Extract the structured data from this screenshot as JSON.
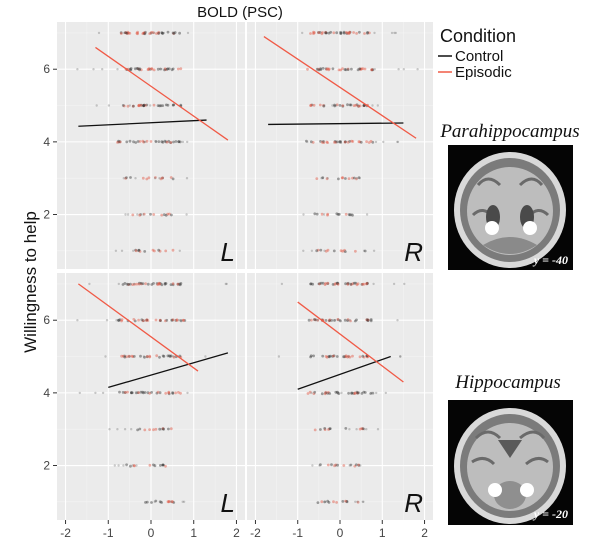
{
  "chart_data": {
    "type": "scatter",
    "top_label": "BOLD (PSC)",
    "ylabel": "Willingness to help",
    "xlim": [
      -2.2,
      2.2
    ],
    "ylim": [
      0.5,
      7.3
    ],
    "x_ticks": [
      -2,
      -1,
      0,
      1,
      2
    ],
    "y_ticks": [
      2,
      4,
      6
    ],
    "grid": true,
    "legend": {
      "title": "Condition",
      "position": "top-right",
      "entries": [
        {
          "name": "Control",
          "color": "#111111"
        },
        {
          "name": "Episodic",
          "color": "#f05a46"
        }
      ]
    },
    "panels": [
      {
        "region": "Parahippocampus",
        "hemisphere": "L",
        "show_x_ticks": false,
        "fits": {
          "Control": {
            "x": [
              -1.7,
              1.3
            ],
            "y": [
              4.43,
              4.6
            ]
          },
          "Episodic": {
            "x": [
              -1.3,
              1.8
            ],
            "y": [
              6.6,
              4.05
            ]
          }
        }
      },
      {
        "region": "Parahippocampus",
        "hemisphere": "R",
        "show_x_ticks": false,
        "fits": {
          "Control": {
            "x": [
              -1.7,
              1.5
            ],
            "y": [
              4.48,
              4.52
            ]
          },
          "Episodic": {
            "x": [
              -1.8,
              1.8
            ],
            "y": [
              6.9,
              4.1
            ]
          }
        }
      },
      {
        "region": "Hippocampus",
        "hemisphere": "L",
        "show_x_ticks": true,
        "fits": {
          "Control": {
            "x": [
              -1.0,
              1.8
            ],
            "y": [
              4.15,
              5.1
            ]
          },
          "Episodic": {
            "x": [
              -1.7,
              1.1
            ],
            "y": [
              7.0,
              4.6
            ]
          }
        }
      },
      {
        "region": "Hippocampus",
        "hemisphere": "R",
        "show_x_ticks": true,
        "fits": {
          "Control": {
            "x": [
              -1.0,
              1.2
            ],
            "y": [
              4.1,
              5.0
            ]
          },
          "Episodic": {
            "x": [
              -1.0,
              1.5
            ],
            "y": [
              6.5,
              4.3
            ]
          }
        }
      }
    ],
    "point_rows": [
      {
        "y": 7,
        "x_min": -0.7,
        "x_max": 0.7,
        "count": 36,
        "spread_min": -1.8,
        "spread_max": 1.8
      },
      {
        "y": 6,
        "x_min": -0.8,
        "x_max": 0.8,
        "count": 32,
        "spread_min": -1.9,
        "spread_max": 1.9
      },
      {
        "y": 5,
        "x_min": -0.7,
        "x_max": 0.7,
        "count": 28,
        "spread_min": -1.6,
        "spread_max": 1.5
      },
      {
        "y": 4,
        "x_min": -0.8,
        "x_max": 0.8,
        "count": 30,
        "spread_min": -1.7,
        "spread_max": 1.6
      },
      {
        "y": 3,
        "x_min": -0.6,
        "x_max": 0.6,
        "count": 12,
        "spread_min": -1.0,
        "spread_max": 0.9
      },
      {
        "y": 2,
        "x_min": -0.6,
        "x_max": 0.6,
        "count": 12,
        "spread_min": -0.9,
        "spread_max": 0.9
      },
      {
        "y": 1,
        "x_min": -0.6,
        "x_max": 0.6,
        "count": 12,
        "spread_min": -0.9,
        "spread_max": 0.9
      }
    ],
    "brain_insets": [
      {
        "title": "Parahippocampus",
        "coordinate": "y = -40"
      },
      {
        "title": "Hippocampus",
        "coordinate": "y = -20"
      }
    ]
  }
}
